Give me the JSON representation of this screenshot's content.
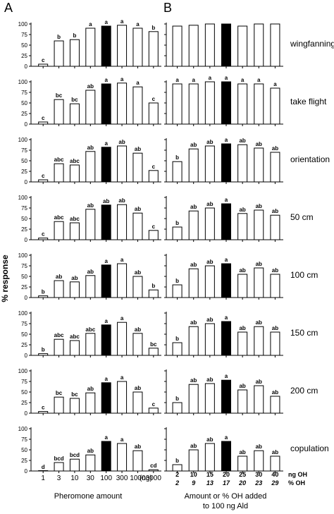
{
  "figure": {
    "panel_a_label": "A",
    "panel_b_label": "B",
    "ylabel": "% response",
    "panel_a_xlabel": "Pheromone amount",
    "panel_b_xlabel_line1": "Amount or % OH added",
    "panel_b_xlabel_line2": "to 100 ng Ald",
    "ng_oh_label": "ng OH",
    "pct_oh_label": "% OH",
    "units_label": "(ng)"
  },
  "chart_data": [
    {
      "panel": "A",
      "type": "bar",
      "categories": [
        "1",
        "3",
        "10",
        "30",
        "100",
        "300",
        "1000",
        "3000"
      ],
      "ylim": [
        0,
        100
      ],
      "yticks": [
        0,
        25,
        50,
        75,
        100
      ],
      "highlight_index": 4,
      "rows": [
        {
          "label": "wingfanning",
          "values": [
            5,
            60,
            63,
            90,
            95,
            97,
            90,
            82
          ],
          "letters": [
            "c",
            "b",
            "b",
            "a",
            "a",
            "a",
            "a",
            "b"
          ]
        },
        {
          "label": "take flight",
          "values": [
            5,
            58,
            48,
            80,
            95,
            97,
            88,
            50
          ],
          "letters": [
            "c",
            "bc",
            "bc",
            "ab",
            "a",
            "a",
            "a",
            "c"
          ]
        },
        {
          "label": "orientation",
          "values": [
            5,
            43,
            40,
            72,
            82,
            85,
            68,
            27
          ],
          "letters": [
            "c",
            "abc",
            "abc",
            "ab",
            "a",
            "ab",
            "ab",
            "c"
          ]
        },
        {
          "label": "50 cm",
          "values": [
            4,
            43,
            40,
            72,
            82,
            83,
            63,
            22
          ],
          "letters": [
            "c",
            "abc",
            "abc",
            "ab",
            "ab",
            "ab",
            "ab",
            "c"
          ]
        },
        {
          "label": "100 cm",
          "values": [
            4,
            40,
            37,
            52,
            77,
            80,
            50,
            18
          ],
          "letters": [
            "b",
            "ab",
            "ab",
            "ab",
            "a",
            "a",
            "ab",
            "b"
          ]
        },
        {
          "label": "150 cm",
          "values": [
            4,
            38,
            35,
            52,
            72,
            78,
            52,
            17
          ],
          "letters": [
            "b",
            "abc",
            "abc",
            "abc",
            "a",
            "a",
            "ab",
            "bc"
          ]
        },
        {
          "label": "200 cm",
          "values": [
            4,
            38,
            35,
            48,
            72,
            75,
            50,
            12
          ],
          "letters": [
            "c",
            "bc",
            "bc",
            "ab",
            "a",
            "a",
            "ab",
            "c"
          ]
        },
        {
          "label": "copulation",
          "values": [
            0,
            20,
            28,
            38,
            70,
            65,
            48,
            3
          ],
          "letters": [
            "d",
            "bcd",
            "bcd",
            "ab",
            "a",
            "a",
            "ab",
            "cd"
          ]
        }
      ]
    },
    {
      "panel": "B",
      "type": "bar",
      "categories_ng_oh": [
        "2",
        "10",
        "15",
        "20",
        "25",
        "30",
        "40"
      ],
      "categories_pct_oh": [
        "2",
        "9",
        "13",
        "17",
        "20",
        "23",
        "29"
      ],
      "ylim": [
        0,
        100
      ],
      "yticks": [
        0,
        25,
        50,
        75,
        100
      ],
      "highlight_index": 3,
      "rows": [
        {
          "label": "wingfanning",
          "values": [
            95,
            97,
            100,
            100,
            95,
            100,
            100
          ],
          "letters": [
            "",
            "",
            "",
            "",
            "",
            "",
            ""
          ]
        },
        {
          "label": "take flight",
          "values": [
            95,
            95,
            100,
            100,
            95,
            95,
            85
          ],
          "letters": [
            "a",
            "a",
            "a",
            "a",
            "a",
            "a",
            "a"
          ]
        },
        {
          "label": "orientation",
          "values": [
            48,
            78,
            85,
            90,
            88,
            80,
            70
          ],
          "letters": [
            "b",
            "ab",
            "ab",
            "a",
            "ab",
            "ab",
            "ab"
          ]
        },
        {
          "label": "50 cm",
          "values": [
            30,
            68,
            75,
            85,
            62,
            70,
            58
          ],
          "letters": [
            "b",
            "ab",
            "ab",
            "a",
            "ab",
            "ab",
            "ab"
          ]
        },
        {
          "label": "100 cm",
          "values": [
            30,
            68,
            75,
            80,
            55,
            70,
            55
          ],
          "letters": [
            "b",
            "ab",
            "ab",
            "a",
            "ab",
            "ab",
            "ab"
          ]
        },
        {
          "label": "150 cm",
          "values": [
            30,
            68,
            75,
            80,
            55,
            68,
            55
          ],
          "letters": [
            "b",
            "ab",
            "ab",
            "a",
            "ab",
            "ab",
            "ab"
          ]
        },
        {
          "label": "200 cm",
          "values": [
            25,
            68,
            70,
            78,
            55,
            65,
            40
          ],
          "letters": [
            "b",
            "ab",
            "ab",
            "a",
            "ab",
            "ab",
            "ab"
          ]
        },
        {
          "label": "copulation",
          "values": [
            15,
            50,
            65,
            70,
            35,
            48,
            35
          ],
          "letters": [
            "b",
            "ab",
            "ab",
            "a",
            "ab",
            "ab",
            "ab"
          ]
        }
      ]
    }
  ],
  "colors": {
    "bar_fill": "#ffffff",
    "highlight_fill": "#000000",
    "stroke": "#000000"
  }
}
